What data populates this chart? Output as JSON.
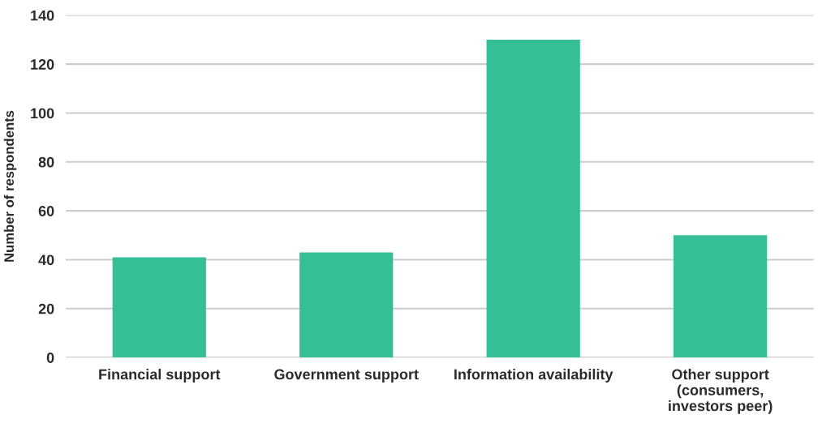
{
  "chart_data": {
    "type": "bar",
    "ylabel": "Number of respondents",
    "categories": [
      "Financial support",
      "Government support",
      "Information availability",
      "Other support\n(consumers,\ninvestors peer)"
    ],
    "values": [
      41,
      43,
      130,
      50
    ],
    "color": "#34bf96",
    "ylim": [
      0,
      140
    ],
    "yticks": [
      0,
      20,
      40,
      60,
      80,
      100,
      120,
      140
    ],
    "grid": "y"
  }
}
